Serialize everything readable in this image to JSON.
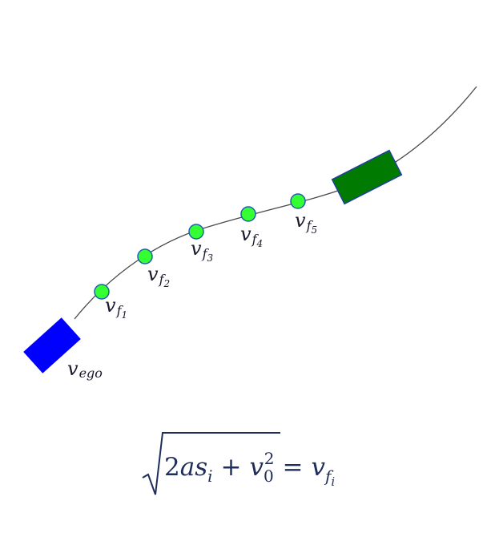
{
  "colors": {
    "path": "#4a4a4a",
    "ego_vehicle": "#0000ff",
    "front_vehicle": "#007a00",
    "front_vehicle_stroke": "#1f3f9f",
    "waypoint_fill": "#33ff33",
    "waypoint_stroke": "#1f5faf",
    "label_text": "#1a1a2e",
    "formula_text": "#1f2d5a"
  },
  "labels": {
    "ego": {
      "main": "v",
      "sub": "ego"
    },
    "waypoints": [
      {
        "main": "v",
        "sub": "f",
        "subsub": "1"
      },
      {
        "main": "v",
        "sub": "f",
        "subsub": "2"
      },
      {
        "main": "v",
        "sub": "f",
        "subsub": "3"
      },
      {
        "main": "v",
        "sub": "f",
        "subsub": "4"
      },
      {
        "main": "v",
        "sub": "f",
        "subsub": "5"
      }
    ]
  },
  "formula": {
    "coef": "2",
    "a": "a",
    "s": "s",
    "s_sub": "i",
    "plus": "+",
    "v0": "v",
    "v0_sub": "0",
    "v0_sup": "2",
    "equals": "=",
    "rhs": "v",
    "rhs_sub": "f",
    "rhs_subsub": "i"
  }
}
